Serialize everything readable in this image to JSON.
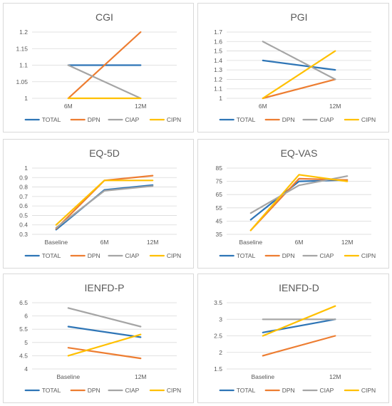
{
  "palette": {
    "TOTAL": "#2e75b6",
    "DPN": "#ed7d31",
    "CIAP": "#a5a5a5",
    "CIPN": "#ffc000"
  },
  "chart_data": [
    {
      "type": "line",
      "title": "CGI",
      "categories": [
        "6M",
        "12M"
      ],
      "ylim": [
        1,
        1.2
      ],
      "yticks": [
        "1",
        "1.05",
        "1.1",
        "1.15",
        "1.2"
      ],
      "grid": true,
      "legend": "bottom",
      "series": [
        {
          "name": "TOTAL",
          "values": [
            1.1,
            1.1
          ]
        },
        {
          "name": "DPN",
          "values": [
            1.0,
            1.2
          ]
        },
        {
          "name": "CIAP",
          "values": [
            1.1,
            1.0
          ]
        },
        {
          "name": "CIPN",
          "values": [
            1.0,
            1.0
          ]
        }
      ]
    },
    {
      "type": "line",
      "title": "PGI",
      "categories": [
        "6M",
        "12M"
      ],
      "ylim": [
        1,
        1.7
      ],
      "yticks": [
        "1",
        "1.1",
        "1.2",
        "1.3",
        "1.4",
        "1.5",
        "1.6",
        "1.7"
      ],
      "grid": true,
      "legend": "bottom",
      "series": [
        {
          "name": "TOTAL",
          "values": [
            1.4,
            1.3
          ]
        },
        {
          "name": "DPN",
          "values": [
            1.0,
            1.2
          ]
        },
        {
          "name": "CIAP",
          "values": [
            1.6,
            1.2
          ]
        },
        {
          "name": "CIPN",
          "values": [
            1.0,
            1.5
          ]
        }
      ]
    },
    {
      "type": "line",
      "title": "EQ-5D",
      "categories": [
        "Baseline",
        "6M",
        "12M"
      ],
      "ylim": [
        0.3,
        1.0
      ],
      "yticks": [
        "0.3",
        "0.4",
        "0.5",
        "0.6",
        "0.7",
        "0.8",
        "0.9",
        "1"
      ],
      "grid": true,
      "legend": "bottom",
      "series": [
        {
          "name": "TOTAL",
          "values": [
            0.35,
            0.77,
            0.82
          ]
        },
        {
          "name": "DPN",
          "values": [
            0.36,
            0.87,
            0.92
          ]
        },
        {
          "name": "CIAP",
          "values": [
            0.37,
            0.76,
            0.81
          ]
        },
        {
          "name": "CIPN",
          "values": [
            0.4,
            0.87,
            0.87
          ]
        }
      ]
    },
    {
      "type": "line",
      "title": "EQ-VAS",
      "categories": [
        "Baseline",
        "6M",
        "12M"
      ],
      "ylim": [
        35,
        85
      ],
      "yticks": [
        "35",
        "45",
        "55",
        "65",
        "75",
        "85"
      ],
      "grid": true,
      "legend": "bottom",
      "series": [
        {
          "name": "TOTAL",
          "values": [
            46,
            75,
            76
          ]
        },
        {
          "name": "DPN",
          "values": [
            38,
            77,
            76
          ]
        },
        {
          "name": "CIAP",
          "values": [
            51,
            72,
            79
          ]
        },
        {
          "name": "CIPN",
          "values": [
            38,
            80,
            75
          ]
        }
      ]
    },
    {
      "type": "line",
      "title": "IENFD-P",
      "categories": [
        "Baseline",
        "12M"
      ],
      "ylim": [
        4,
        6.5
      ],
      "yticks": [
        "4",
        "4.5",
        "5",
        "5.5",
        "6",
        "6.5"
      ],
      "grid": true,
      "legend": "bottom",
      "series": [
        {
          "name": "TOTAL",
          "values": [
            5.6,
            5.2
          ]
        },
        {
          "name": "DPN",
          "values": [
            4.8,
            4.4
          ]
        },
        {
          "name": "CIAP",
          "values": [
            6.3,
            5.6
          ]
        },
        {
          "name": "CIPN",
          "values": [
            4.5,
            5.3
          ]
        }
      ]
    },
    {
      "type": "line",
      "title": "IENFD-D",
      "categories": [
        "Baseline",
        "12M"
      ],
      "ylim": [
        1.5,
        3.5
      ],
      "yticks": [
        "1.5",
        "2",
        "2.5",
        "3",
        "3.5"
      ],
      "grid": true,
      "legend": "bottom",
      "series": [
        {
          "name": "TOTAL",
          "values": [
            2.6,
            3.0
          ]
        },
        {
          "name": "DPN",
          "values": [
            1.9,
            2.5
          ]
        },
        {
          "name": "CIAP",
          "values": [
            3.0,
            3.0
          ]
        },
        {
          "name": "CIPN",
          "values": [
            2.5,
            3.4
          ]
        }
      ]
    }
  ]
}
